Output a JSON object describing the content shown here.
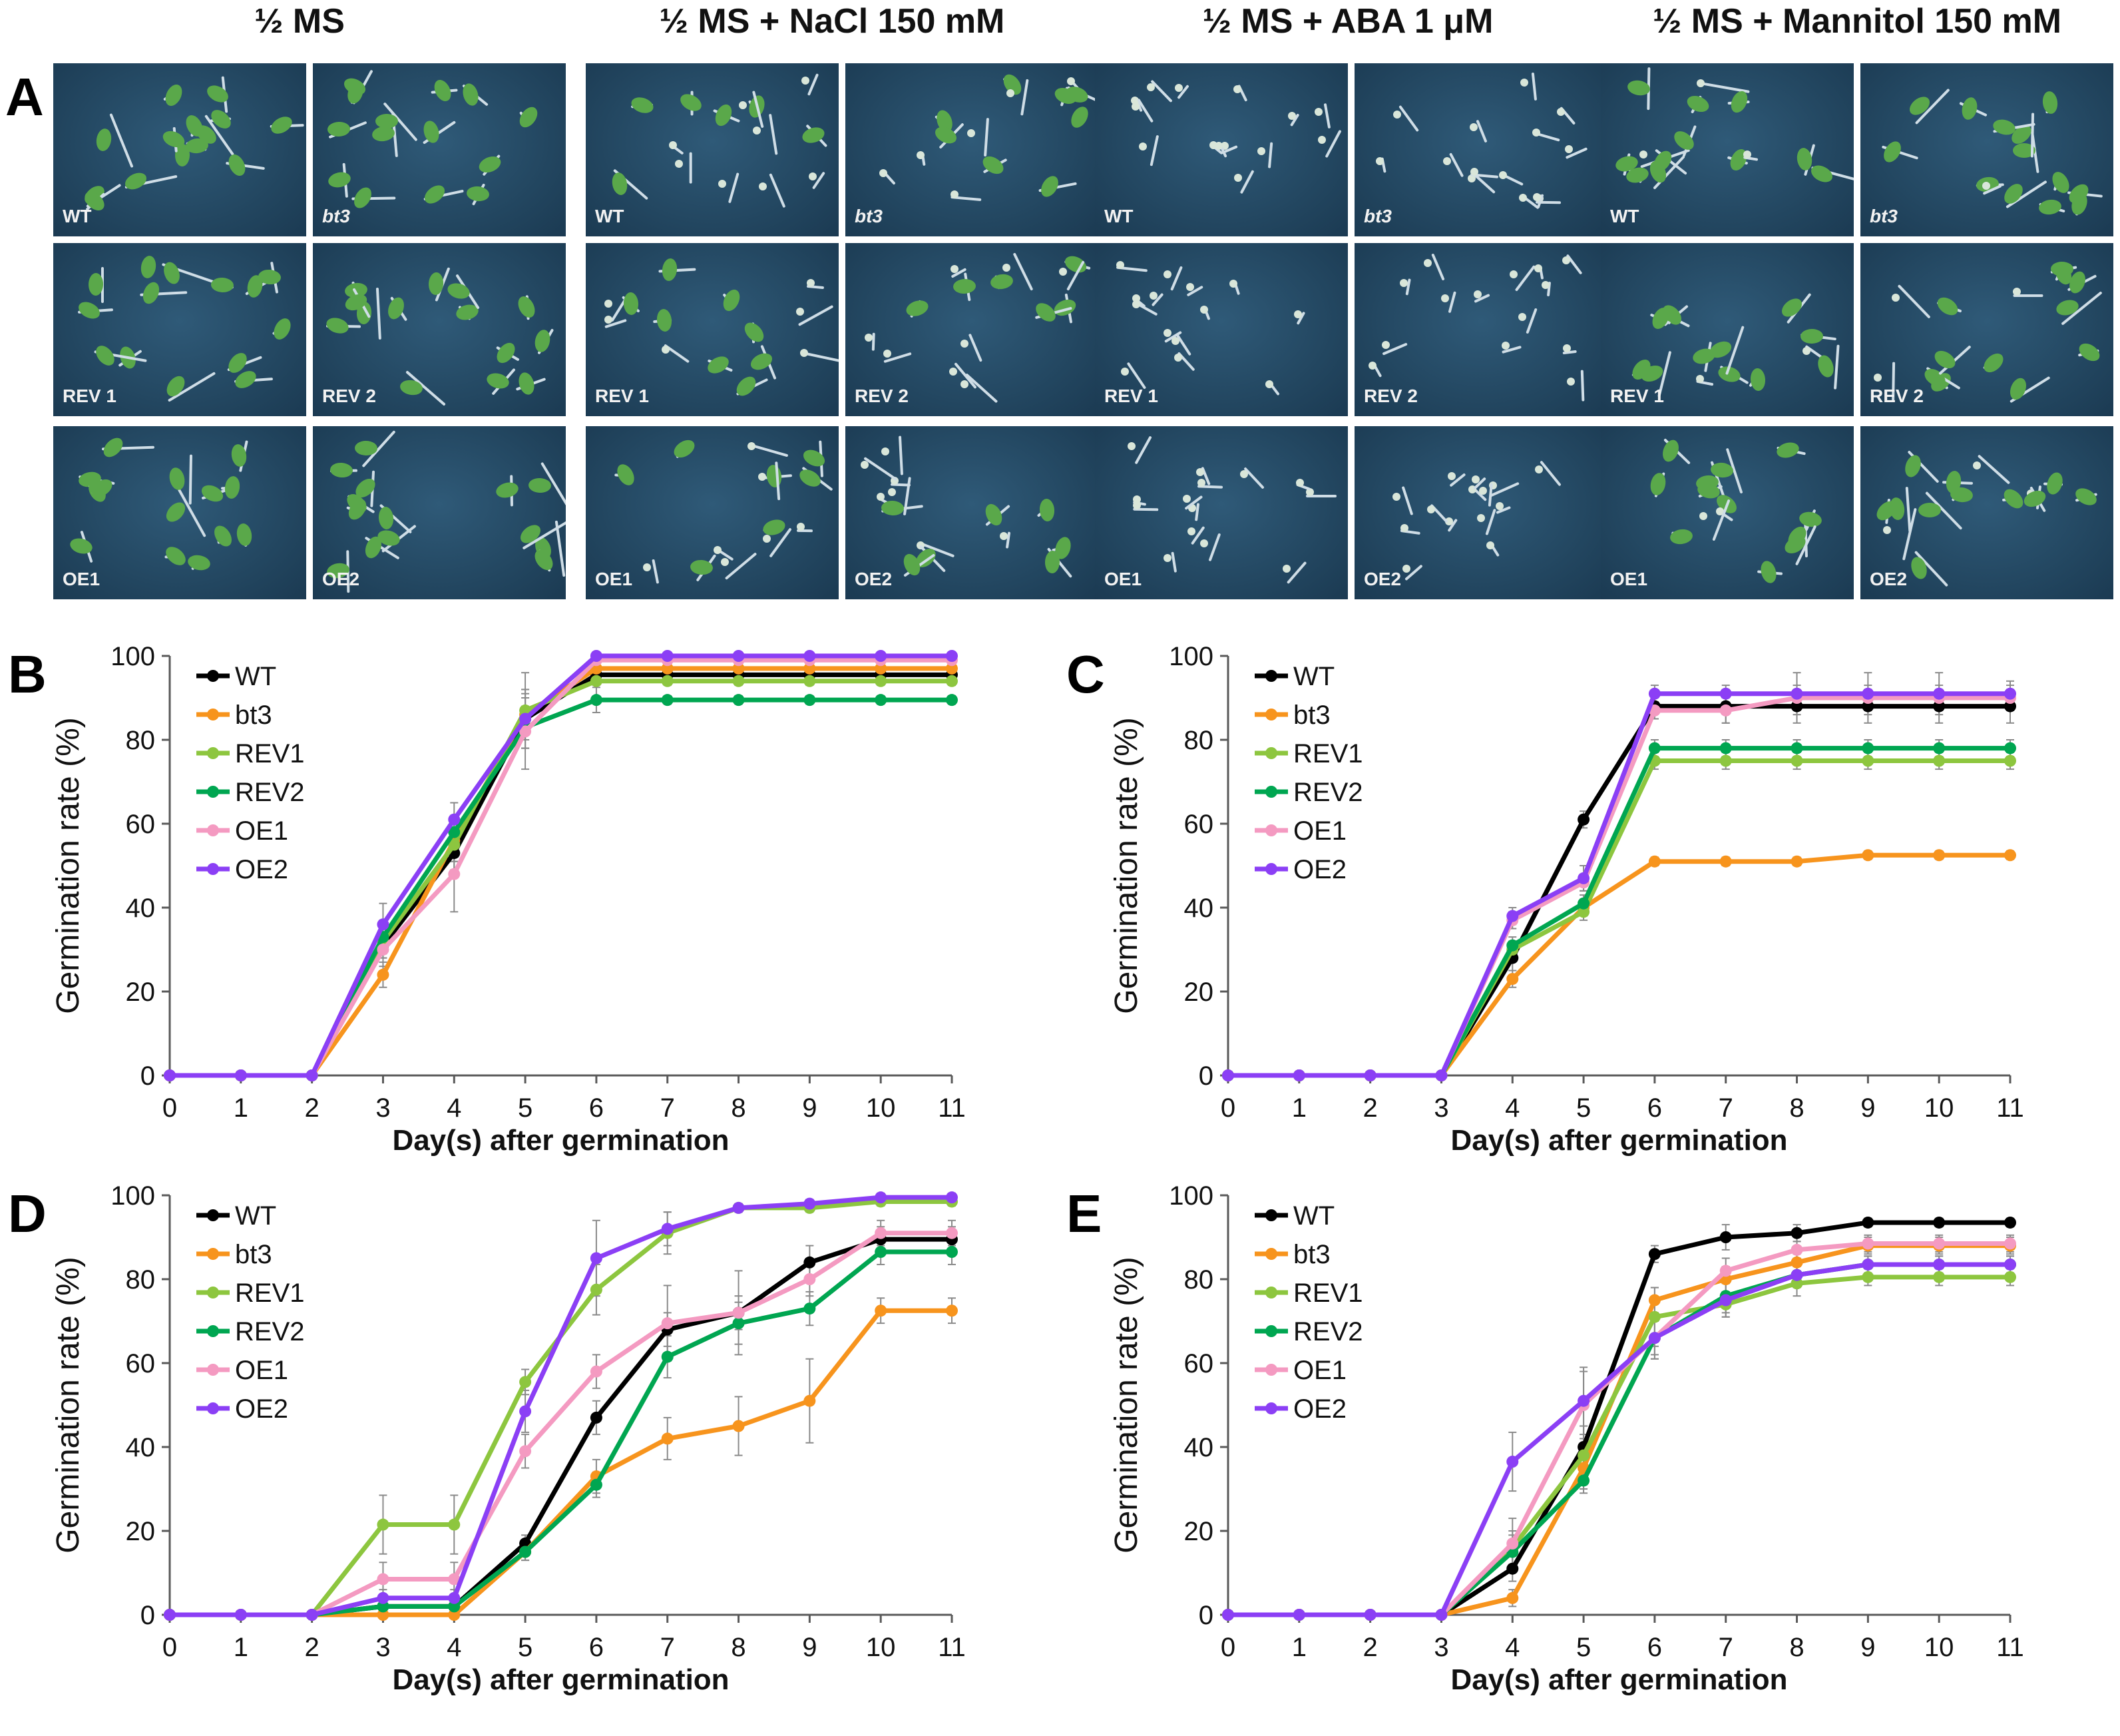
{
  "figure": {
    "panel_a_letter": "A",
    "conditions": [
      "½ MS",
      "½ MS + NaCl 150 mM",
      "½ MS + ABA 1 μM",
      "½ MS + Mannitol 150 mM"
    ],
    "tile_labels": [
      [
        [
          "WT",
          "bt3"
        ],
        [
          "REV 1",
          "REV 2"
        ],
        [
          "OE1",
          "OE2"
        ]
      ],
      [
        [
          "WT",
          "bt3"
        ],
        [
          "REV 1",
          "REV 2"
        ],
        [
          "OE1",
          "OE2"
        ]
      ],
      [
        [
          "WT",
          "bt3"
        ],
        [
          "REV 1",
          "REV 2"
        ],
        [
          "OE1",
          "OE2"
        ]
      ],
      [
        [
          "WT",
          "bt3"
        ],
        [
          "REV 1",
          "REV 2"
        ],
        [
          "OE1",
          "OE2"
        ]
      ]
    ],
    "italic_label": "bt3"
  },
  "colors": {
    "WT": "#000000",
    "bt3": "#f7941d",
    "REV1": "#8dc63f",
    "REV2": "#00a651",
    "OE1": "#f49ac1",
    "OE2": "#8b3ff5",
    "axis": "#595959",
    "errorbar": "#8a8a8a"
  },
  "chart_data": [
    {
      "panel": "B",
      "type": "line",
      "title": "",
      "xlabel": "Day(s) after germination",
      "ylabel": "Germination rate (%)",
      "x": [
        0,
        1,
        2,
        3,
        4,
        5,
        6,
        7,
        8,
        9,
        10,
        11
      ],
      "ylim": [
        0,
        100
      ],
      "yticks": [
        0,
        20,
        40,
        60,
        80,
        100
      ],
      "legend": "top-left",
      "series": [
        {
          "name": "WT",
          "values": [
            0,
            0,
            0,
            31,
            53,
            85,
            95.5,
            95.5,
            95.5,
            95.5,
            95.5,
            95.5
          ],
          "errors": [
            0,
            0,
            0,
            3,
            4,
            5,
            1,
            1,
            1,
            1,
            1,
            1
          ]
        },
        {
          "name": "bt3",
          "values": [
            0,
            0,
            0,
            24,
            56,
            86,
            97,
            97,
            97,
            97,
            97,
            97
          ],
          "errors": [
            0,
            0,
            0,
            3,
            5,
            6,
            1,
            1,
            1,
            1,
            1,
            1
          ]
        },
        {
          "name": "REV1",
          "values": [
            0,
            0,
            0,
            32,
            55,
            87,
            94,
            94,
            94,
            94,
            94,
            94
          ],
          "errors": [
            0,
            0,
            0,
            4,
            4,
            9,
            1,
            1,
            1,
            1,
            1,
            1
          ]
        },
        {
          "name": "REV2",
          "values": [
            0,
            0,
            0,
            33,
            58,
            83,
            89.5,
            89.5,
            89.5,
            89.5,
            89.5,
            89.5
          ],
          "errors": [
            0,
            0,
            0,
            4,
            4,
            5,
            3,
            1,
            1,
            1,
            1,
            1
          ]
        },
        {
          "name": "OE1",
          "values": [
            0,
            0,
            0,
            30,
            48,
            82,
            99,
            99,
            99,
            99,
            99,
            99
          ],
          "errors": [
            0,
            0,
            0,
            4,
            9,
            9,
            1,
            1,
            1,
            1,
            1,
            1
          ]
        },
        {
          "name": "OE2",
          "values": [
            0,
            0,
            0,
            36,
            61,
            85,
            100,
            100,
            100,
            100,
            100,
            100
          ],
          "errors": [
            0,
            0,
            0,
            5,
            4,
            7,
            0,
            0,
            0,
            0,
            0,
            0
          ]
        }
      ]
    },
    {
      "panel": "C",
      "type": "line",
      "title": "",
      "xlabel": "Day(s) after germination",
      "ylabel": "Germination rate (%)",
      "x": [
        0,
        1,
        2,
        3,
        4,
        5,
        6,
        7,
        8,
        9,
        10,
        11
      ],
      "ylim": [
        0,
        100
      ],
      "yticks": [
        0,
        20,
        40,
        60,
        80,
        100
      ],
      "legend": "top-left",
      "series": [
        {
          "name": "WT",
          "values": [
            0,
            0,
            0,
            0,
            28,
            61,
            88,
            88,
            88,
            88,
            88,
            88
          ],
          "errors": [
            0,
            0,
            0,
            0,
            3,
            2,
            3,
            4,
            4,
            4,
            4,
            4
          ]
        },
        {
          "name": "bt3",
          "values": [
            0,
            0,
            0,
            0,
            23,
            40,
            51,
            51,
            51,
            52.5,
            52.5,
            52.5
          ],
          "errors": [
            0,
            0,
            0,
            0,
            2,
            2,
            1,
            1,
            1,
            1,
            1,
            1
          ]
        },
        {
          "name": "REV1",
          "values": [
            0,
            0,
            0,
            0,
            30,
            39,
            75,
            75,
            75,
            75,
            75,
            75
          ],
          "errors": [
            0,
            0,
            0,
            0,
            2,
            2,
            2,
            2,
            2,
            2,
            2,
            2
          ]
        },
        {
          "name": "REV2",
          "values": [
            0,
            0,
            0,
            0,
            31,
            41,
            78,
            78,
            78,
            78,
            78,
            78
          ],
          "errors": [
            0,
            0,
            0,
            0,
            2,
            2,
            2,
            2,
            2,
            2,
            2,
            2
          ]
        },
        {
          "name": "OE1",
          "values": [
            0,
            0,
            0,
            0,
            37,
            46,
            87,
            87,
            90,
            90,
            90,
            90
          ],
          "errors": [
            0,
            0,
            0,
            0,
            2,
            2,
            2,
            3,
            3,
            3,
            3,
            3
          ]
        },
        {
          "name": "OE2",
          "values": [
            0,
            0,
            0,
            0,
            38,
            47,
            91,
            91,
            91,
            91,
            91,
            91
          ],
          "errors": [
            0,
            0,
            0,
            0,
            2,
            3,
            2,
            2,
            5,
            5,
            5,
            3
          ]
        }
      ]
    },
    {
      "panel": "D",
      "type": "line",
      "title": "",
      "xlabel": "Day(s) after germination",
      "ylabel": "Germination rate (%)",
      "x": [
        0,
        1,
        2,
        3,
        4,
        5,
        6,
        7,
        8,
        9,
        10,
        11
      ],
      "ylim": [
        0,
        100
      ],
      "yticks": [
        0,
        20,
        40,
        60,
        80,
        100
      ],
      "legend": "top-left",
      "series": [
        {
          "name": "WT",
          "values": [
            0,
            0,
            0,
            2,
            2,
            17,
            47,
            68,
            72,
            84,
            89.5,
            89.5
          ],
          "errors": [
            0,
            0,
            0,
            1,
            1,
            2,
            4,
            4,
            4,
            4,
            3,
            3
          ]
        },
        {
          "name": "bt3",
          "values": [
            0,
            0,
            0,
            0,
            0,
            15,
            33,
            42,
            45,
            51,
            72.5,
            72.5
          ],
          "errors": [
            0,
            0,
            0,
            0,
            0,
            2,
            4,
            5,
            7,
            10,
            3,
            3
          ]
        },
        {
          "name": "REV1",
          "values": [
            0,
            0,
            0,
            21.5,
            21.5,
            55.5,
            77.5,
            91,
            97,
            97,
            98.5,
            98.5
          ],
          "errors": [
            0,
            0,
            0,
            7,
            7,
            3,
            6,
            5,
            1,
            1,
            1,
            1
          ]
        },
        {
          "name": "REV2",
          "values": [
            0,
            0,
            0,
            2,
            2,
            15,
            31,
            61.5,
            69.5,
            73,
            86.5,
            86.5
          ],
          "errors": [
            0,
            0,
            0,
            1,
            1,
            2,
            3,
            5,
            5,
            4,
            3,
            3
          ]
        },
        {
          "name": "OE1",
          "values": [
            0,
            0,
            0,
            8.5,
            8.5,
            39,
            58,
            69.5,
            72,
            80,
            91,
            91
          ],
          "errors": [
            0,
            0,
            0,
            4,
            4,
            4,
            4,
            9,
            10,
            4,
            3,
            3
          ]
        },
        {
          "name": "OE2",
          "values": [
            0,
            0,
            0,
            4,
            4,
            48.5,
            85,
            92,
            97,
            98,
            99.5,
            99.5
          ],
          "errors": [
            0,
            0,
            0,
            2,
            2,
            5,
            9,
            4,
            1,
            1,
            1,
            1
          ]
        }
      ]
    },
    {
      "panel": "E",
      "type": "line",
      "title": "",
      "xlabel": "Day(s) after germination",
      "ylabel": "Germination rate (%)",
      "x": [
        0,
        1,
        2,
        3,
        4,
        5,
        6,
        7,
        8,
        9,
        10,
        11
      ],
      "ylim": [
        0,
        100
      ],
      "yticks": [
        0,
        20,
        40,
        60,
        80,
        100
      ],
      "legend": "top-left",
      "series": [
        {
          "name": "WT",
          "values": [
            0,
            0,
            0,
            0,
            11,
            40,
            86,
            90,
            91,
            93.5,
            93.5,
            93.5
          ],
          "errors": [
            0,
            0,
            0,
            0,
            3,
            5,
            2,
            3,
            2,
            1,
            1,
            1
          ]
        },
        {
          "name": "bt3",
          "values": [
            0,
            0,
            0,
            0,
            4,
            35,
            75,
            80,
            84,
            88,
            88,
            88
          ],
          "errors": [
            0,
            0,
            0,
            0,
            2,
            5,
            3,
            3,
            2,
            2,
            2,
            2
          ]
        },
        {
          "name": "REV1",
          "values": [
            0,
            0,
            0,
            0,
            16,
            38,
            71,
            74,
            79,
            80.5,
            80.5,
            80.5
          ],
          "errors": [
            0,
            0,
            0,
            0,
            4,
            7,
            7,
            3,
            3,
            2,
            2,
            2
          ]
        },
        {
          "name": "REV2",
          "values": [
            0,
            0,
            0,
            0,
            15,
            32,
            66,
            76,
            81,
            83.5,
            83.5,
            83.5
          ],
          "errors": [
            0,
            0,
            0,
            0,
            4,
            3,
            4,
            4,
            3,
            2,
            2,
            2
          ]
        },
        {
          "name": "OE1",
          "values": [
            0,
            0,
            0,
            0,
            17,
            50,
            66,
            82,
            87,
            88.5,
            88.5,
            88.5
          ],
          "errors": [
            0,
            0,
            0,
            0,
            6,
            8,
            5,
            3,
            2,
            2,
            2,
            2
          ]
        },
        {
          "name": "OE2",
          "values": [
            0,
            0,
            0,
            0,
            36.5,
            51,
            66,
            75,
            81,
            83.5,
            83.5,
            83.5
          ],
          "errors": [
            0,
            0,
            0,
            0,
            7,
            8,
            5,
            4,
            2,
            2,
            2,
            2
          ]
        }
      ]
    }
  ]
}
